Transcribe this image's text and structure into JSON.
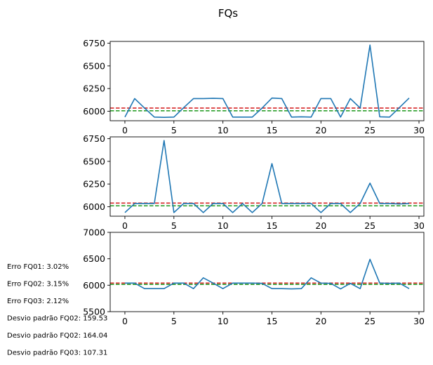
{
  "chart_data": {
    "title": "FQs",
    "type": "line",
    "series_color": "#1f77b4",
    "ref_line_colors": [
      "#d62728",
      "#2ca02c"
    ],
    "panels": [
      {
        "name": "FQ01",
        "type": "line",
        "x": [
          0,
          1,
          2,
          3,
          4,
          5,
          6,
          7,
          8,
          9,
          10,
          11,
          12,
          13,
          14,
          15,
          16,
          17,
          18,
          19,
          20,
          21,
          22,
          23,
          24,
          25,
          26,
          27,
          28,
          29
        ],
        "values": [
          5935,
          6140,
          6035,
          5935,
          5932,
          5935,
          6040,
          6140,
          6140,
          6142,
          6140,
          5935,
          5935,
          5935,
          6035,
          6145,
          6140,
          5935,
          5938,
          5935,
          6140,
          6140,
          5935,
          6140,
          6035,
          6730,
          5938,
          5935,
          6040,
          6145
        ],
        "ref_lines": [
          6035,
          6005
        ],
        "xlim": [
          -1.5,
          30.5
        ],
        "ylim": [
          5895,
          6770
        ],
        "xticks": [
          0,
          5,
          10,
          15,
          20,
          25,
          30
        ],
        "yticks": [
          6000,
          6250,
          6500,
          6750
        ]
      },
      {
        "name": "FQ02",
        "type": "line",
        "x": [
          0,
          1,
          2,
          3,
          4,
          5,
          6,
          7,
          8,
          9,
          10,
          11,
          12,
          13,
          14,
          15,
          16,
          17,
          18,
          19,
          20,
          21,
          22,
          23,
          24,
          25,
          26,
          27,
          28,
          29
        ],
        "values": [
          5935,
          6035,
          6035,
          6035,
          6730,
          5935,
          6035,
          6035,
          5935,
          6035,
          6035,
          5935,
          6035,
          5935,
          6035,
          6475,
          6035,
          6035,
          6035,
          6035,
          5935,
          6035,
          6035,
          5935,
          6035,
          6260,
          6035,
          6035,
          6030,
          6035
        ],
        "ref_lines": [
          6040,
          6010
        ],
        "xlim": [
          -1.5,
          30.5
        ],
        "ylim": [
          5895,
          6770
        ],
        "xticks": [
          0,
          5,
          10,
          15,
          20,
          25,
          30
        ],
        "yticks": [
          6000,
          6250,
          6500,
          6750
        ]
      },
      {
        "name": "FQ03",
        "type": "line",
        "x": [
          0,
          1,
          2,
          3,
          4,
          5,
          6,
          7,
          8,
          9,
          10,
          11,
          12,
          13,
          14,
          15,
          16,
          17,
          18,
          19,
          20,
          21,
          22,
          23,
          24,
          25,
          26,
          27,
          28,
          29
        ],
        "values": [
          6040,
          6040,
          5935,
          5935,
          5935,
          6040,
          6040,
          5935,
          6140,
          6040,
          5935,
          6040,
          6040,
          6040,
          6035,
          5935,
          5935,
          5930,
          5935,
          6140,
          6040,
          6035,
          5930,
          6035,
          5935,
          6490,
          6040,
          6035,
          6040,
          5935
        ],
        "ref_lines": [
          6040,
          6015
        ],
        "xlim": [
          -1.5,
          30.5
        ],
        "ylim": [
          5500,
          7000
        ],
        "xticks": [
          0,
          5,
          10,
          15,
          20,
          25,
          30
        ],
        "yticks": [
          5500,
          6000,
          6500,
          7000
        ]
      }
    ]
  },
  "annotations": [
    "Erro FQ01: 3.02%",
    "Erro FQ02: 3.15%",
    "Erro FQ03: 2.12%",
    "Desvio padrão FQ02: 159.53",
    "Desvio padrão FQ02: 164.04",
    "Desvio padrão FQ03: 107.31"
  ]
}
